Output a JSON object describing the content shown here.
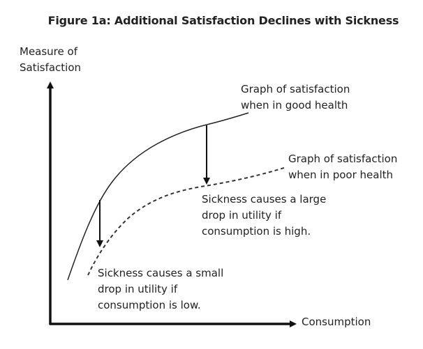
{
  "title": "Figure 1a: Additional Satisfaction Declines with Sickness",
  "y_axis_label": [
    "Measure of",
    "Satisfaction"
  ],
  "x_axis_label": "Consumption",
  "curves": {
    "good_health": [
      "Graph of satisfaction",
      "when in good health"
    ],
    "poor_health": [
      "Graph of satisfaction",
      "when in poor health"
    ]
  },
  "annotations": {
    "high": [
      "Sickness causes a large",
      "drop in utility if",
      "consumption is high."
    ],
    "low": [
      "Sickness causes a small",
      "drop in utility if",
      "consumption is low."
    ]
  }
}
